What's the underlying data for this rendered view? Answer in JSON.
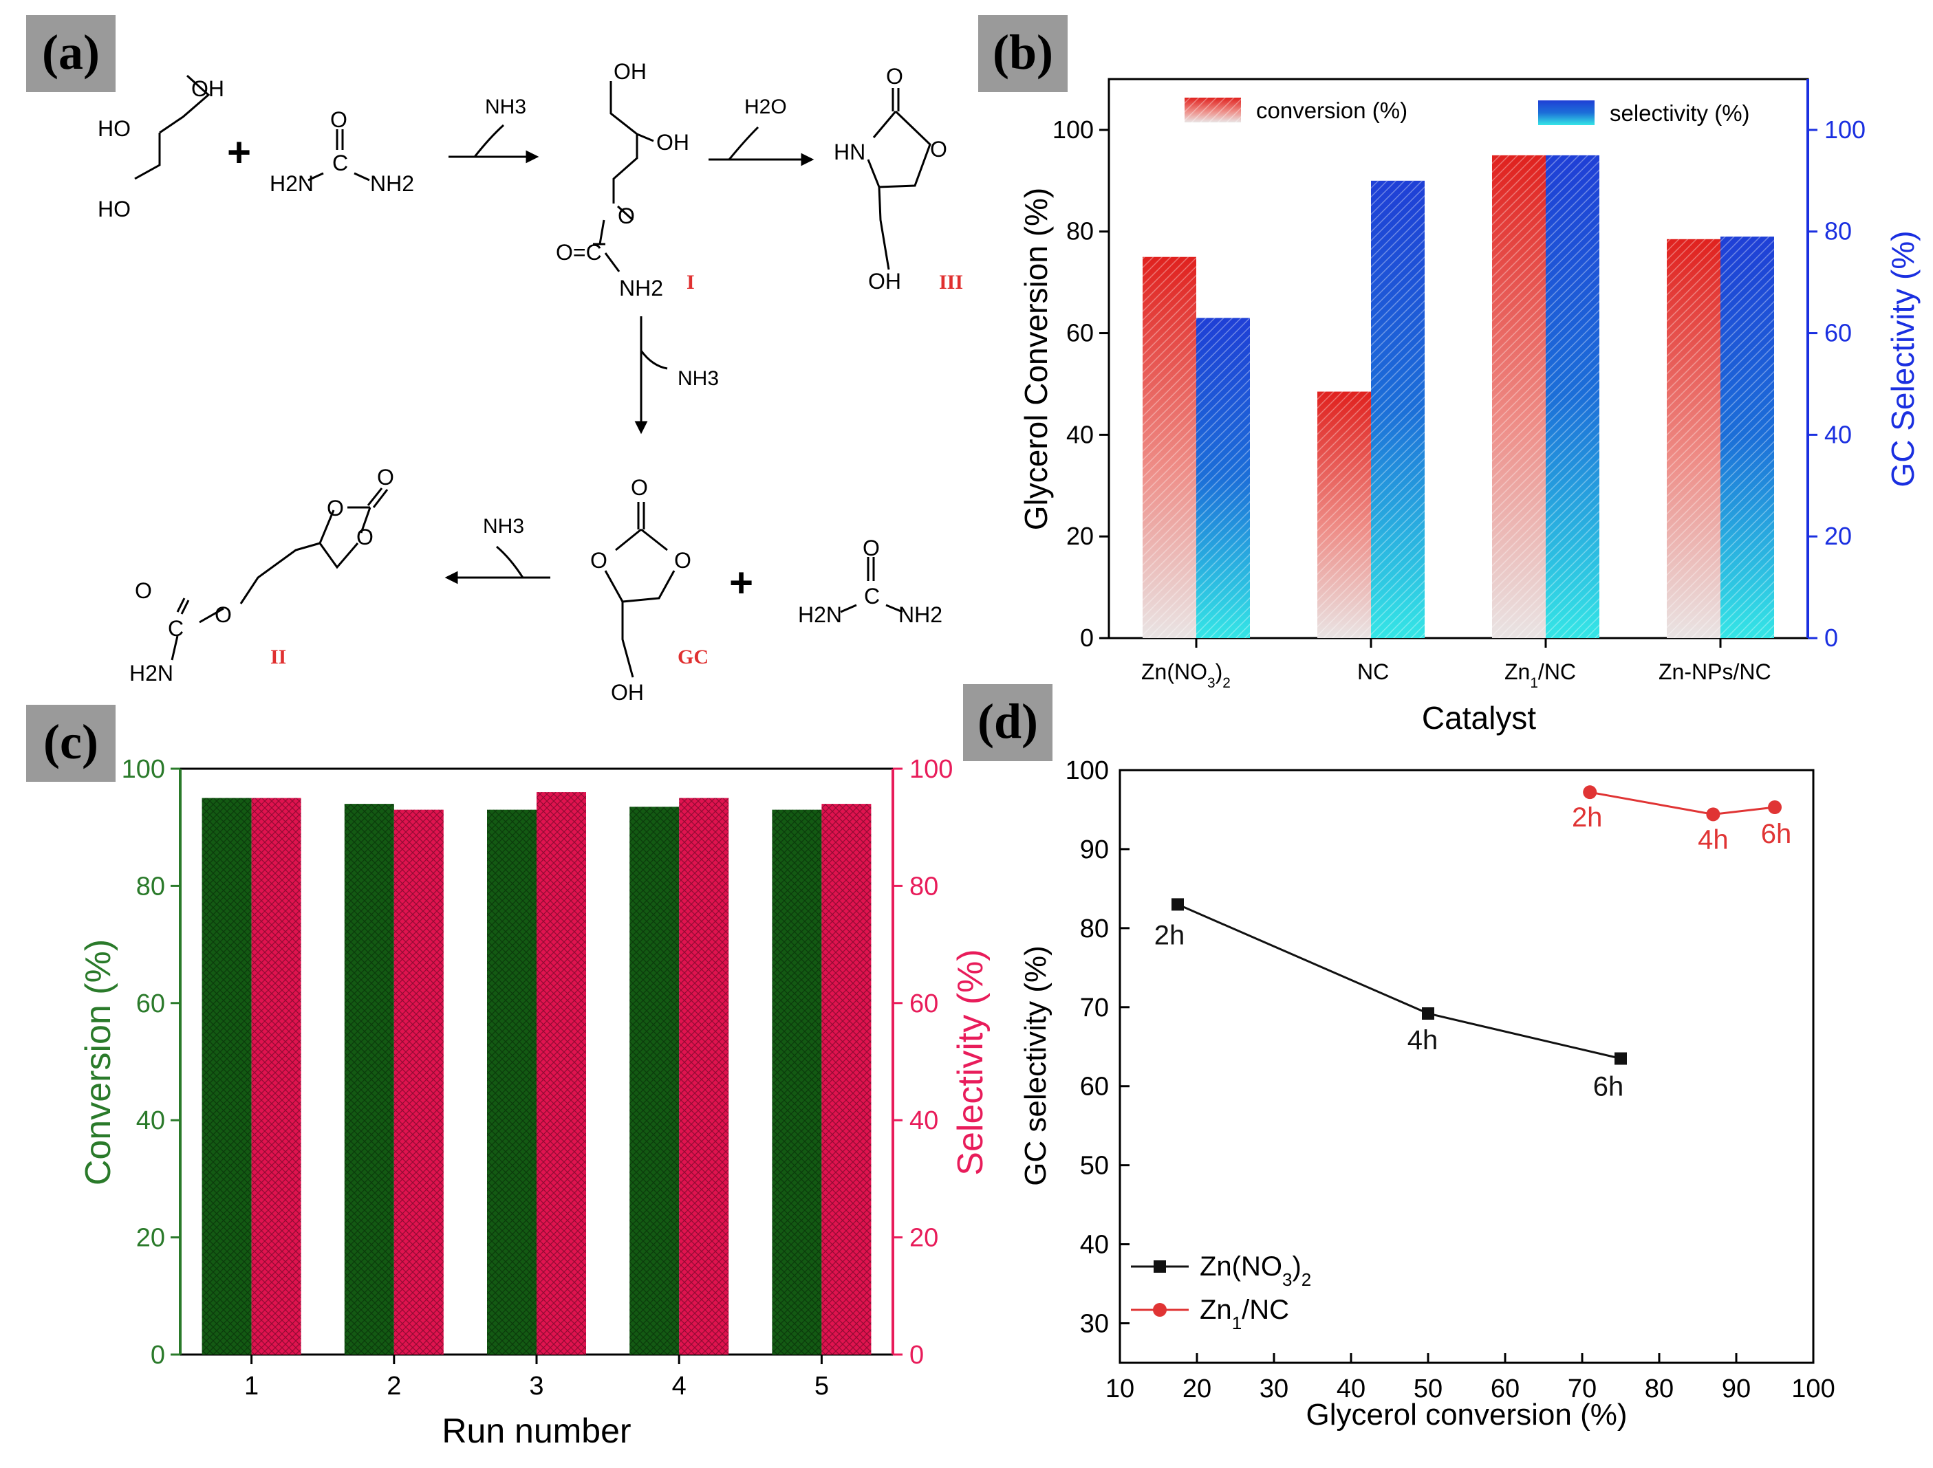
{
  "panel_labels": {
    "a": "(a)",
    "b": "(b)",
    "c": "(c)",
    "d": "(d)"
  },
  "colors": {
    "label_bg": "#9a9a9a",
    "conv_red": "#e0211e",
    "sel_blue": "#1f3fd6",
    "sel_cyan": "#35e0e6",
    "bar_green": "#135a13",
    "bar_pink": "#e0134f",
    "axis_green": "#2a7a2a",
    "axis_pink": "#e81c5a",
    "axis_blue": "#1a2fe0",
    "line_black": "#111111",
    "line_red": "#e03434"
  },
  "scheme": {
    "glycerol": {
      "oh1": "OH",
      "oh2": "HO",
      "oh3": "HO"
    },
    "plus1": "+",
    "urea1": {
      "o": "O",
      "c": "C",
      "nh2_left": "H2N",
      "nh2_right": "NH2"
    },
    "arrow1_loss": "NH3",
    "compound_I": {
      "oh1": "OH",
      "oh2": "OH",
      "o": "O",
      "oc": "O=C",
      "nh2": "NH2",
      "label": "I"
    },
    "arrow2_loss": "H2O",
    "compound_III": {
      "o_top": "O",
      "hn": "HN",
      "o_ring": "O",
      "oh": "OH",
      "label": "III"
    },
    "arrow3_loss": "NH3",
    "compound_GC": {
      "o_top": "O",
      "o_left": "O",
      "o_right": "O",
      "oh": "OH",
      "label": "GC"
    },
    "plus2": "+",
    "urea2": {
      "o": "O",
      "c": "C",
      "nh2_left": "H2N",
      "nh2_right": "NH2"
    },
    "arrow4_loss": "NH3",
    "compound_II": {
      "o_top": "O",
      "o1": "O",
      "o2": "O",
      "o_carb": "O",
      "c": "C",
      "h2n": "H2N",
      "label": "II"
    }
  },
  "chart_data": [
    {
      "panel": "b",
      "type": "bar",
      "title": "",
      "xlabel": "Catalyst",
      "ylabel": "Glycerol Conversion (%)",
      "ylabel_right": "GC Selectivity (%)",
      "categories": [
        "Zn(NO3)2",
        "NC",
        "Zn1/NC",
        "Zn-NPs/NC"
      ],
      "ylim": [
        0,
        110
      ],
      "yticks": [
        0,
        20,
        40,
        60,
        80,
        100
      ],
      "ytick_labels": [
        "0",
        "20",
        "40",
        "60",
        "80",
        "100"
      ],
      "series": [
        {
          "name": "conversion (%)",
          "values": [
            75,
            48.5,
            95,
            78.5
          ]
        },
        {
          "name": "selectivity (%)",
          "values": [
            63,
            90,
            95,
            79
          ]
        }
      ],
      "legend": "top"
    },
    {
      "panel": "c",
      "type": "bar",
      "title": "",
      "xlabel": "Run number",
      "ylabel": "Conversion (%)",
      "ylabel_right": "Selectivity (%)",
      "categories": [
        "1",
        "2",
        "3",
        "4",
        "5"
      ],
      "ylim": [
        0,
        100
      ],
      "yticks": [
        0,
        20,
        40,
        60,
        80,
        100
      ],
      "ytick_labels": [
        "0",
        "20",
        "40",
        "60",
        "80",
        "100"
      ],
      "series": [
        {
          "name": "Conversion (%)",
          "values": [
            95,
            94,
            93,
            93.5,
            93
          ]
        },
        {
          "name": "Selectivity (%)",
          "values": [
            95,
            93,
            96,
            95,
            94
          ]
        }
      ]
    },
    {
      "panel": "d",
      "type": "line",
      "title": "",
      "xlabel": "Glycerol conversion (%)",
      "ylabel": "GC selectivity (%)",
      "xlim": [
        10,
        100
      ],
      "ylim": [
        25,
        100
      ],
      "xticks": [
        10,
        20,
        30,
        40,
        50,
        60,
        70,
        80,
        90,
        100
      ],
      "xtick_labels": [
        "10",
        "20",
        "30",
        "40",
        "50",
        "60",
        "70",
        "80",
        "90",
        "100"
      ],
      "yticks": [
        30,
        40,
        50,
        60,
        70,
        80,
        90,
        100
      ],
      "ytick_labels": [
        "30",
        "40",
        "50",
        "60",
        "70",
        "80",
        "90",
        "100"
      ],
      "series": [
        {
          "name": "Zn(NO3)2",
          "x": [
            17.5,
            50,
            75
          ],
          "y": [
            83,
            69.2,
            63.5
          ],
          "labels": [
            "2h",
            "4h",
            "6h"
          ]
        },
        {
          "name": "Zn1/NC",
          "x": [
            71,
            87,
            95
          ],
          "y": [
            97.2,
            94.4,
            95.3
          ],
          "labels": [
            "2h",
            "4h",
            "6h"
          ]
        }
      ],
      "legend": "bottom-left"
    }
  ]
}
